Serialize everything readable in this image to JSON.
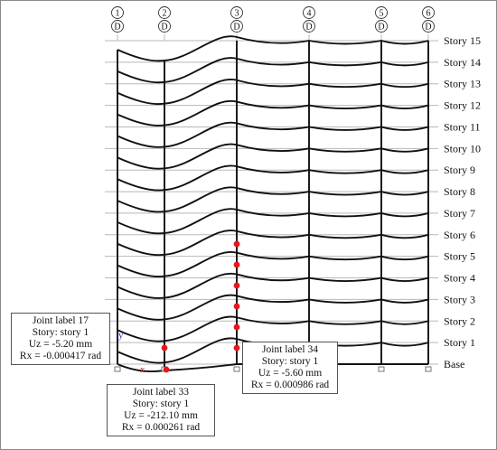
{
  "grid_bubbles": [
    {
      "number": "1",
      "letter": "D"
    },
    {
      "number": "2",
      "letter": "D"
    },
    {
      "number": "3",
      "letter": "D"
    },
    {
      "number": "4",
      "letter": "D"
    },
    {
      "number": "5",
      "letter": "D"
    },
    {
      "number": "6",
      "letter": "D"
    }
  ],
  "stories": [
    "Story 15",
    "Story 14",
    "Story 13",
    "Story 12",
    "Story 11",
    "Story 10",
    "Story 9",
    "Story 8",
    "Story 7",
    "Story 6",
    "Story 5",
    "Story 4",
    "Story 3",
    "Story 2",
    "Story 1",
    "Base"
  ],
  "axis": {
    "x": "x",
    "y": "y",
    "x_color": "#e8151b",
    "y_color": "#2330d8"
  },
  "joints": [
    {
      "id": "joint-17",
      "lines": [
        "Joint label 17",
        "Story: story 1",
        "Uz = -5.20 mm",
        "Rx = -0.000417 rad"
      ]
    },
    {
      "id": "joint-34",
      "lines": [
        "Joint label 34",
        "Story: story 1",
        "Uz = -5.60 mm",
        "Rx = 0.000986 rad"
      ]
    },
    {
      "id": "joint-33",
      "lines": [
        "Joint label 33",
        "Story: story 1",
        "Uz = -212.10 mm",
        "Rx = 0.000261 rad"
      ]
    }
  ],
  "colors": {
    "deformed": "#111111",
    "grid": "#b8b8b8",
    "joint_marker": "#e8151b"
  }
}
